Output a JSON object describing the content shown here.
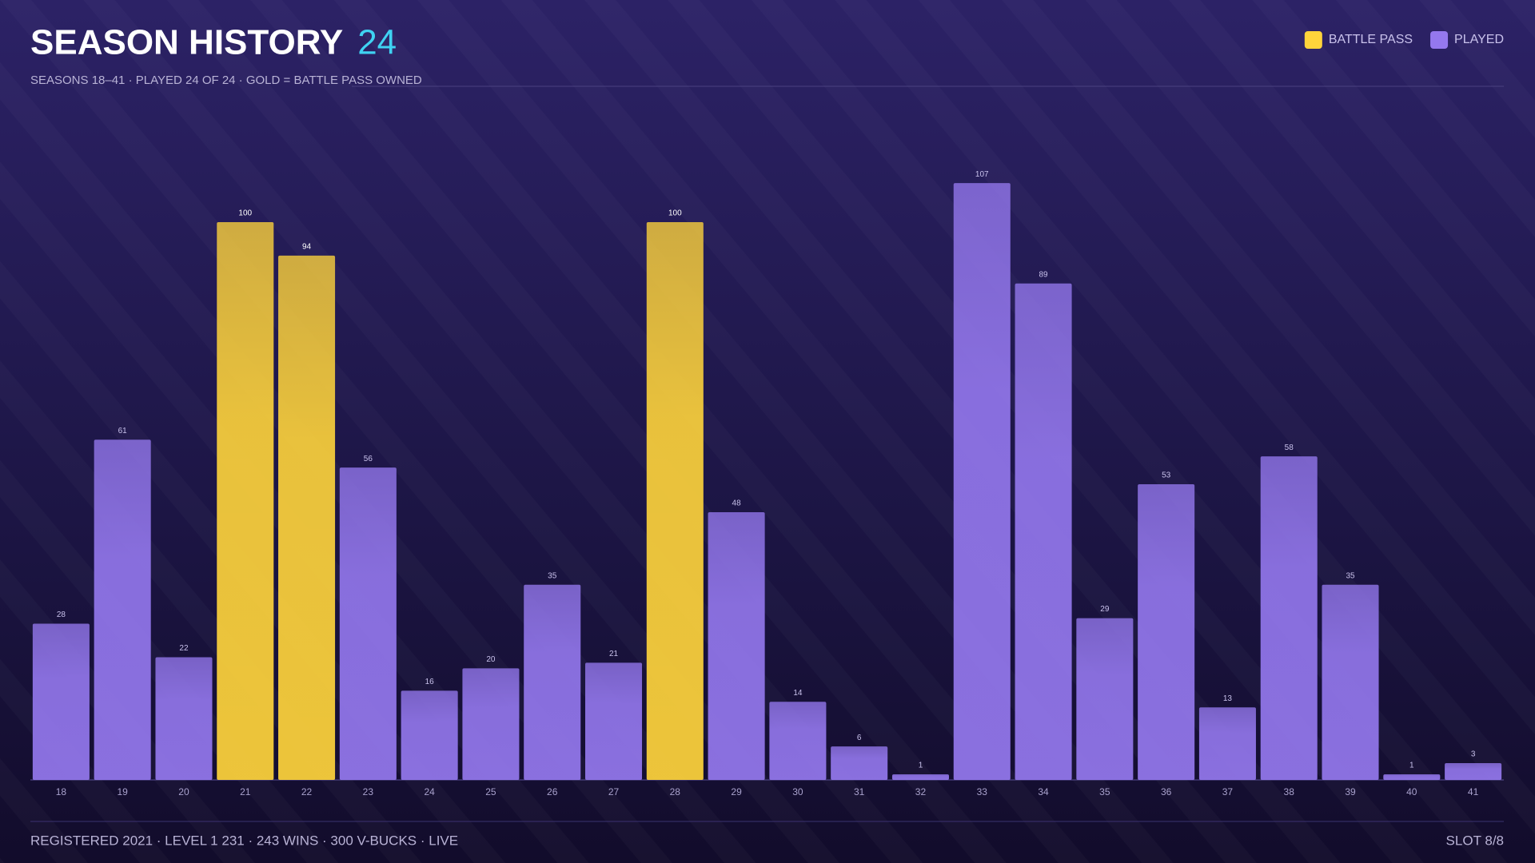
{
  "chart_data": {
    "type": "bar",
    "title": "SEASON HISTORY",
    "title_count": 24,
    "subtitle": "SEASONS 18–41 · PLAYED 24 OF 24 · GOLD = BATTLE PASS OWNED",
    "footer": "REGISTERED 2021 · LEVEL 1 231 · 243 WINS · 300 V-BUCKS · LIVE",
    "footer_right": "SLOT 8/8",
    "categories": [
      18,
      19,
      20,
      21,
      22,
      23,
      24,
      25,
      26,
      27,
      28,
      29,
      30,
      31,
      32,
      33,
      34,
      35,
      36,
      37,
      38,
      39,
      40,
      41
    ],
    "series": [
      {
        "name": "BATTLE PASS",
        "color": "#ffd43b",
        "values": [
          null,
          null,
          null,
          100,
          94,
          null,
          null,
          null,
          null,
          null,
          100,
          null,
          null,
          null,
          null,
          null,
          null,
          null,
          null,
          null,
          null,
          null,
          null,
          null
        ]
      },
      {
        "name": "PLAYED",
        "color": "#9478ee",
        "values": [
          28,
          61,
          22,
          null,
          null,
          56,
          16,
          20,
          35,
          21,
          null,
          48,
          14,
          6,
          1,
          107,
          89,
          29,
          53,
          13,
          58,
          35,
          1,
          3
        ]
      }
    ],
    "ylim": [
      0,
      120
    ],
    "legend": "top-right"
  }
}
